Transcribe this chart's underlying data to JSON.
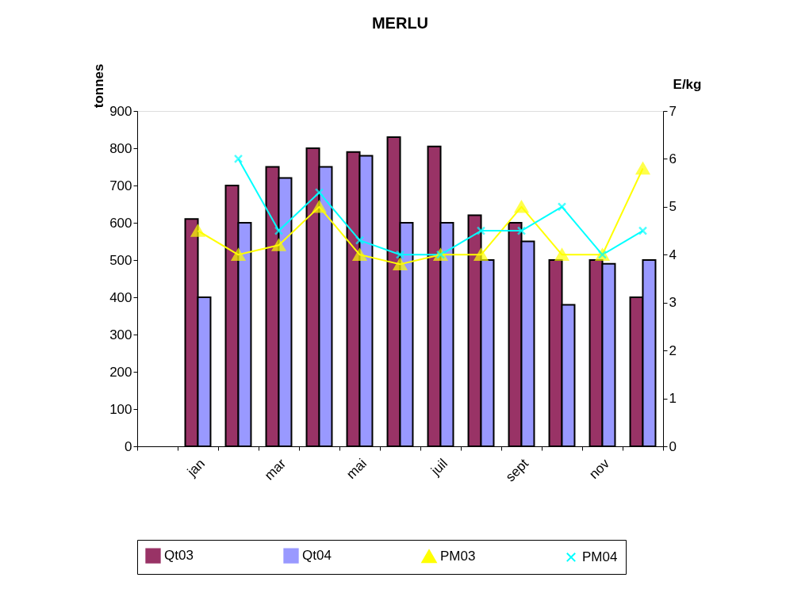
{
  "chart_data": {
    "type": "bar",
    "title": "MERLU",
    "ylabel": "tonnes",
    "y2label": "E/kg",
    "categories": [
      null,
      "jan",
      null,
      "mar",
      null,
      "mai",
      null,
      "juil",
      null,
      "sept",
      null,
      "nov",
      null
    ],
    "series": [
      {
        "name": "Qt03",
        "color": "#993366",
        "values": [
          null,
          610,
          700,
          750,
          800,
          790,
          830,
          805,
          620,
          600,
          500,
          500,
          400
        ]
      },
      {
        "name": "Qt04",
        "color": "#9999ff",
        "values": [
          null,
          400,
          600,
          720,
          750,
          780,
          600,
          600,
          500,
          550,
          380,
          490,
          500
        ]
      },
      {
        "name": "PM03",
        "type": "line",
        "axis": "y2",
        "marker": "triangle",
        "color": "#ffff00",
        "values": [
          null,
          4.5,
          4.0,
          4.2,
          5.0,
          4.0,
          3.8,
          4.0,
          4.0,
          5.0,
          4.0,
          4.0,
          5.8
        ]
      },
      {
        "name": "PM04",
        "type": "line",
        "axis": "y2",
        "marker": "cross",
        "color": "#00ffff",
        "values": [
          null,
          null,
          6.0,
          4.5,
          5.3,
          4.3,
          4.0,
          4.0,
          4.5,
          4.5,
          5.0,
          4.0,
          4.5
        ]
      }
    ],
    "ylim": [
      0,
      900
    ],
    "yticks": [
      0,
      100,
      200,
      300,
      400,
      500,
      600,
      700,
      800,
      900
    ],
    "y2lim": [
      0,
      7
    ],
    "y2ticks": [
      0,
      1,
      2,
      3,
      4,
      5,
      6,
      7
    ],
    "grid": false,
    "legend": "bottom"
  }
}
